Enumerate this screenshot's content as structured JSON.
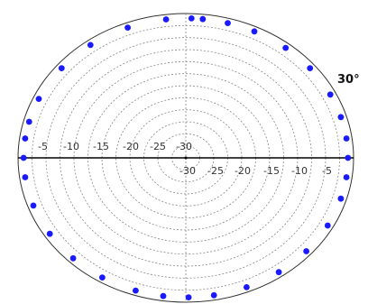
{
  "chart_data": {
    "type": "polar-scatter",
    "title": "",
    "angle_label": "30°",
    "radial_range": [
      -30,
      0
    ],
    "ring_values": [
      -5,
      -10,
      -15,
      -20,
      -25,
      -30
    ],
    "left_tick_labels": [
      "-5",
      "-10",
      "-15",
      "-20",
      "-25",
      "-30"
    ],
    "right_tick_labels": [
      "-30",
      "-25",
      "-20",
      "-15",
      "-10",
      "-5"
    ],
    "grid": true,
    "colors": {
      "points": "#1a1aff",
      "grid": "#888888",
      "axis": "#000000",
      "accent": "#ff4444"
    },
    "points": [
      {
        "angle": 0,
        "value": -1
      },
      {
        "angle": 8,
        "value": -1
      },
      {
        "angle": 17,
        "value": -1
      },
      {
        "angle": 27,
        "value": -1
      },
      {
        "angle": 40,
        "value": -1
      },
      {
        "angle": 52,
        "value": -1
      },
      {
        "angle": 65,
        "value": -1
      },
      {
        "angle": 75,
        "value": -1
      },
      {
        "angle": 84,
        "value": -1
      },
      {
        "angle": 88,
        "value": -1
      },
      {
        "angle": 97,
        "value": -1
      },
      {
        "angle": 111,
        "value": -1
      },
      {
        "angle": 126,
        "value": -1
      },
      {
        "angle": 140,
        "value": -1
      },
      {
        "angle": 155,
        "value": -1
      },
      {
        "angle": 165,
        "value": -1
      },
      {
        "angle": 172,
        "value": -1
      },
      {
        "angle": 180,
        "value": -1
      },
      {
        "angle": 188,
        "value": -1
      },
      {
        "angle": 200,
        "value": -1
      },
      {
        "angle": 213,
        "value": -1
      },
      {
        "angle": 226,
        "value": -1
      },
      {
        "angle": 239,
        "value": -1
      },
      {
        "angle": 252,
        "value": -1
      },
      {
        "angle": 262,
        "value": -1
      },
      {
        "angle": 271,
        "value": -1
      },
      {
        "angle": 280,
        "value": -1
      },
      {
        "angle": 292,
        "value": -1
      },
      {
        "angle": 305,
        "value": -1
      },
      {
        "angle": 318,
        "value": -1
      },
      {
        "angle": 331,
        "value": -1
      },
      {
        "angle": 343,
        "value": -1
      },
      {
        "angle": 352,
        "value": -1
      }
    ]
  }
}
